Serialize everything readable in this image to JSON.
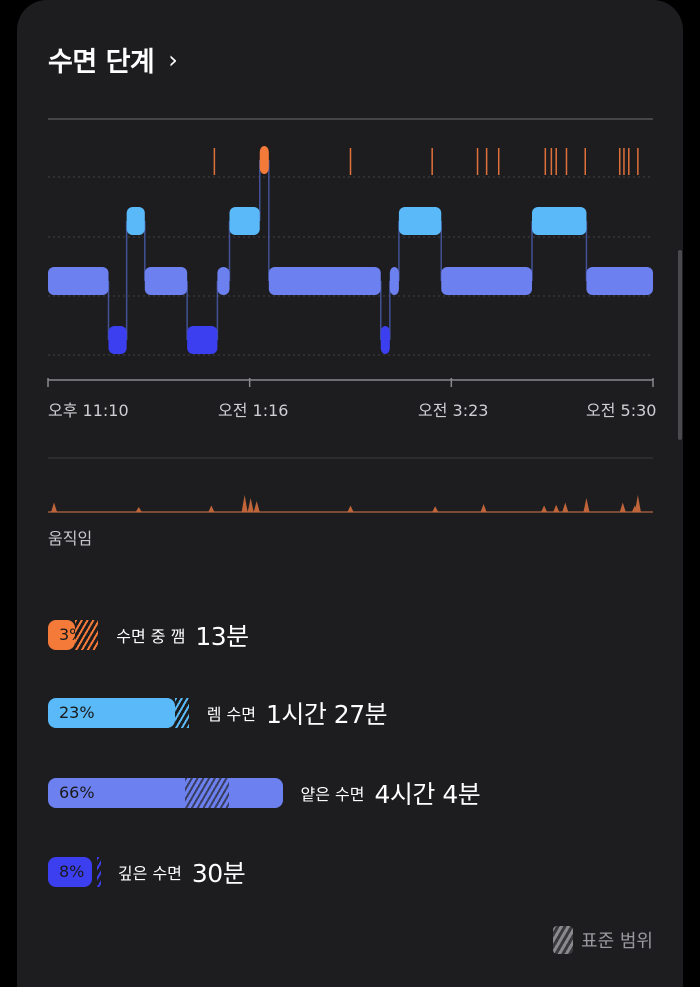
{
  "header": {
    "title": "수면 단계",
    "chevron": "›"
  },
  "chart_data": {
    "type": "step",
    "x_ticks": [
      "오후 11:10",
      "오전 1:16",
      "오전 3:23",
      "오전 5:30"
    ],
    "stages": [
      "깸",
      "렘",
      "얕은",
      "깊은"
    ],
    "hypnogram": [
      {
        "stage": "얕은",
        "start": 0.0,
        "end": 0.1
      },
      {
        "stage": "깊은",
        "start": 0.1,
        "end": 0.13
      },
      {
        "stage": "렘",
        "start": 0.13,
        "end": 0.16
      },
      {
        "stage": "얕은",
        "start": 0.16,
        "end": 0.23
      },
      {
        "stage": "깊은",
        "start": 0.23,
        "end": 0.28
      },
      {
        "stage": "얕은",
        "start": 0.28,
        "end": 0.3
      },
      {
        "stage": "렘",
        "start": 0.3,
        "end": 0.35
      },
      {
        "stage": "깸",
        "start": 0.35,
        "end": 0.365
      },
      {
        "stage": "얕은",
        "start": 0.365,
        "end": 0.55
      },
      {
        "stage": "깊은",
        "start": 0.55,
        "end": 0.565
      },
      {
        "stage": "얕은",
        "start": 0.565,
        "end": 0.58
      },
      {
        "stage": "렘",
        "start": 0.58,
        "end": 0.65
      },
      {
        "stage": "얕은",
        "start": 0.65,
        "end": 0.8
      },
      {
        "stage": "렘",
        "start": 0.8,
        "end": 0.89
      },
      {
        "stage": "얕은",
        "start": 0.89,
        "end": 1.0
      }
    ],
    "wake_marks": [
      0.275,
      0.5,
      0.635,
      0.71,
      0.725,
      0.745,
      0.822,
      0.832,
      0.84,
      0.857,
      0.888,
      0.945,
      0.952,
      0.96,
      0.975
    ],
    "movement": [
      {
        "x": 0.01,
        "v": 0.5
      },
      {
        "x": 0.15,
        "v": 0.2
      },
      {
        "x": 0.27,
        "v": 0.3
      },
      {
        "x": 0.325,
        "v": 1.0
      },
      {
        "x": 0.335,
        "v": 0.8
      },
      {
        "x": 0.345,
        "v": 0.6
      },
      {
        "x": 0.5,
        "v": 0.3
      },
      {
        "x": 0.64,
        "v": 0.25
      },
      {
        "x": 0.72,
        "v": 0.4
      },
      {
        "x": 0.82,
        "v": 0.3
      },
      {
        "x": 0.84,
        "v": 0.35
      },
      {
        "x": 0.855,
        "v": 0.5
      },
      {
        "x": 0.89,
        "v": 0.8
      },
      {
        "x": 0.95,
        "v": 0.5
      },
      {
        "x": 0.97,
        "v": 0.3
      },
      {
        "x": 0.975,
        "v": 1.0
      }
    ]
  },
  "movement_label": "움직임",
  "breakdown": [
    {
      "pct": "3%",
      "name": "수면 중 깸",
      "duration": "13분",
      "color": "#f47a3a",
      "fill": 0.08,
      "hatch_start": 0.08,
      "hatch_end": 0.15
    },
    {
      "pct": "23%",
      "name": "렘 수면",
      "duration": "1시간 27분",
      "color": "#5ab9f8",
      "fill": 0.38,
      "hatch_start": 0.38,
      "hatch_end": 0.42
    },
    {
      "pct": "66%",
      "name": "얕은 수면",
      "duration": "4시간 4분",
      "color": "#6c80f0",
      "fill": 0.7,
      "hatch_start": 0.41,
      "hatch_end": 0.54
    },
    {
      "pct": "8%",
      "name": "깊은 수면",
      "duration": "30분",
      "color": "#3c3ff0",
      "fill": 0.13,
      "hatch_start": 0.145,
      "hatch_end": 0.155
    }
  ],
  "range_key": "표준 범위"
}
